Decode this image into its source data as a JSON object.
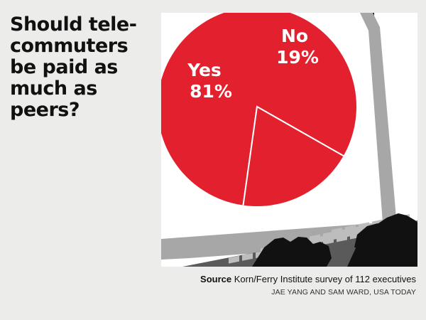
{
  "title_lines": [
    "Should tele-",
    "commuters",
    "be paid as",
    "much as",
    "peers?"
  ],
  "source_label": "Source",
  "source_text": "Korn/Ferry Institute survey of 112 executives",
  "credit": "JAE YANG AND SAM WARD, USA TODAY",
  "colors": {
    "pie": "#e3202e",
    "pie_edge": "#ffffff",
    "background": "#ececea",
    "screen_frame": "#a7a7a7",
    "monitor_dark": "#111111",
    "keyboard": "#5a5a5a",
    "keys": "#bdbdbd"
  },
  "chart_data": {
    "type": "pie",
    "slices": [
      {
        "label": "Yes",
        "value": 81,
        "display": "81%"
      },
      {
        "label": "No",
        "value": 19,
        "display": "19%"
      }
    ]
  }
}
